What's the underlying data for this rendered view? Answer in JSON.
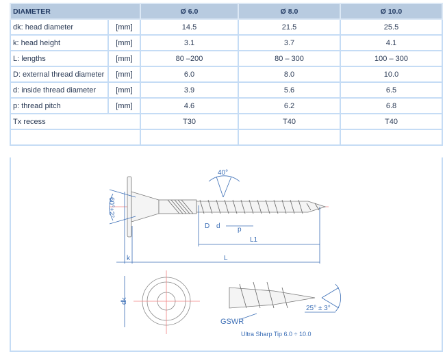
{
  "table": {
    "header": {
      "label": "DIAMETER",
      "cols": [
        "Ø 6.0",
        "Ø 8.0",
        "Ø 10.0"
      ]
    },
    "rows": [
      {
        "label": "dk: head diameter",
        "unit": "[mm]",
        "values": [
          "14.5",
          "21.5",
          "25.5"
        ]
      },
      {
        "label": "k: head height",
        "unit": "[mm]",
        "values": [
          "3.1",
          "3.7",
          "4.1"
        ]
      },
      {
        "label": "L: lengths",
        "unit": "[mm]",
        "values": [
          "80 –200",
          "80 – 300",
          "100 – 300"
        ]
      },
      {
        "label": "D: external thread diameter",
        "unit": "[mm]",
        "values": [
          "6.0",
          "8.0",
          "10.0"
        ]
      },
      {
        "label": "d: inside thread diameter",
        "unit": "[mm]",
        "values": [
          "3.9",
          "5.6",
          "6.5"
        ]
      },
      {
        "label": "p: thread pitch",
        "unit": "[mm]",
        "values": [
          "4.6",
          "6.2",
          "6.8"
        ]
      },
      {
        "label": "Tx recess",
        "unit": "",
        "values": [
          "T30",
          "T40",
          "T40"
        ]
      }
    ]
  },
  "drawing": {
    "angle_thread": "40°",
    "angle_head": "60°±2°",
    "dim_D": "D",
    "dim_d": "d",
    "dim_p": "p",
    "dim_L1": "L1",
    "dim_L": "L",
    "dim_k": "k",
    "dim_dk": "dk",
    "tip_label": "GSWR",
    "tip_angle": "25° ± 3°",
    "tip_caption": "Ultra Sharp Tip 6.0 ÷ 10.0",
    "line_color": "#3a6db5",
    "center_color": "#f08080"
  }
}
